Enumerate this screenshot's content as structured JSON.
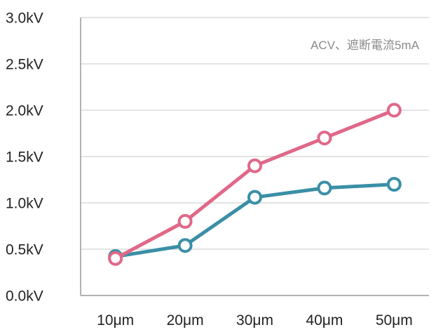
{
  "chart_data": {
    "type": "line",
    "title": "",
    "xlabel": "",
    "ylabel": "",
    "annotation": "ACV、遮断電流5mA",
    "categories": [
      "10μm",
      "20μm",
      "30μm",
      "40μm",
      "50μm"
    ],
    "y_ticks": [
      "0.0kV",
      "0.5kV",
      "1.0kV",
      "1.5kV",
      "2.0kV",
      "2.5kV",
      "3.0kV"
    ],
    "ylim": [
      0,
      3.0
    ],
    "grid": true,
    "legend": "none",
    "series": [
      {
        "color": "#e06888",
        "values": [
          0.4,
          0.8,
          1.4,
          1.7,
          2.0
        ]
      },
      {
        "color": "#3a8fa6",
        "values": [
          0.42,
          0.54,
          1.06,
          1.16,
          1.2
        ]
      }
    ]
  }
}
